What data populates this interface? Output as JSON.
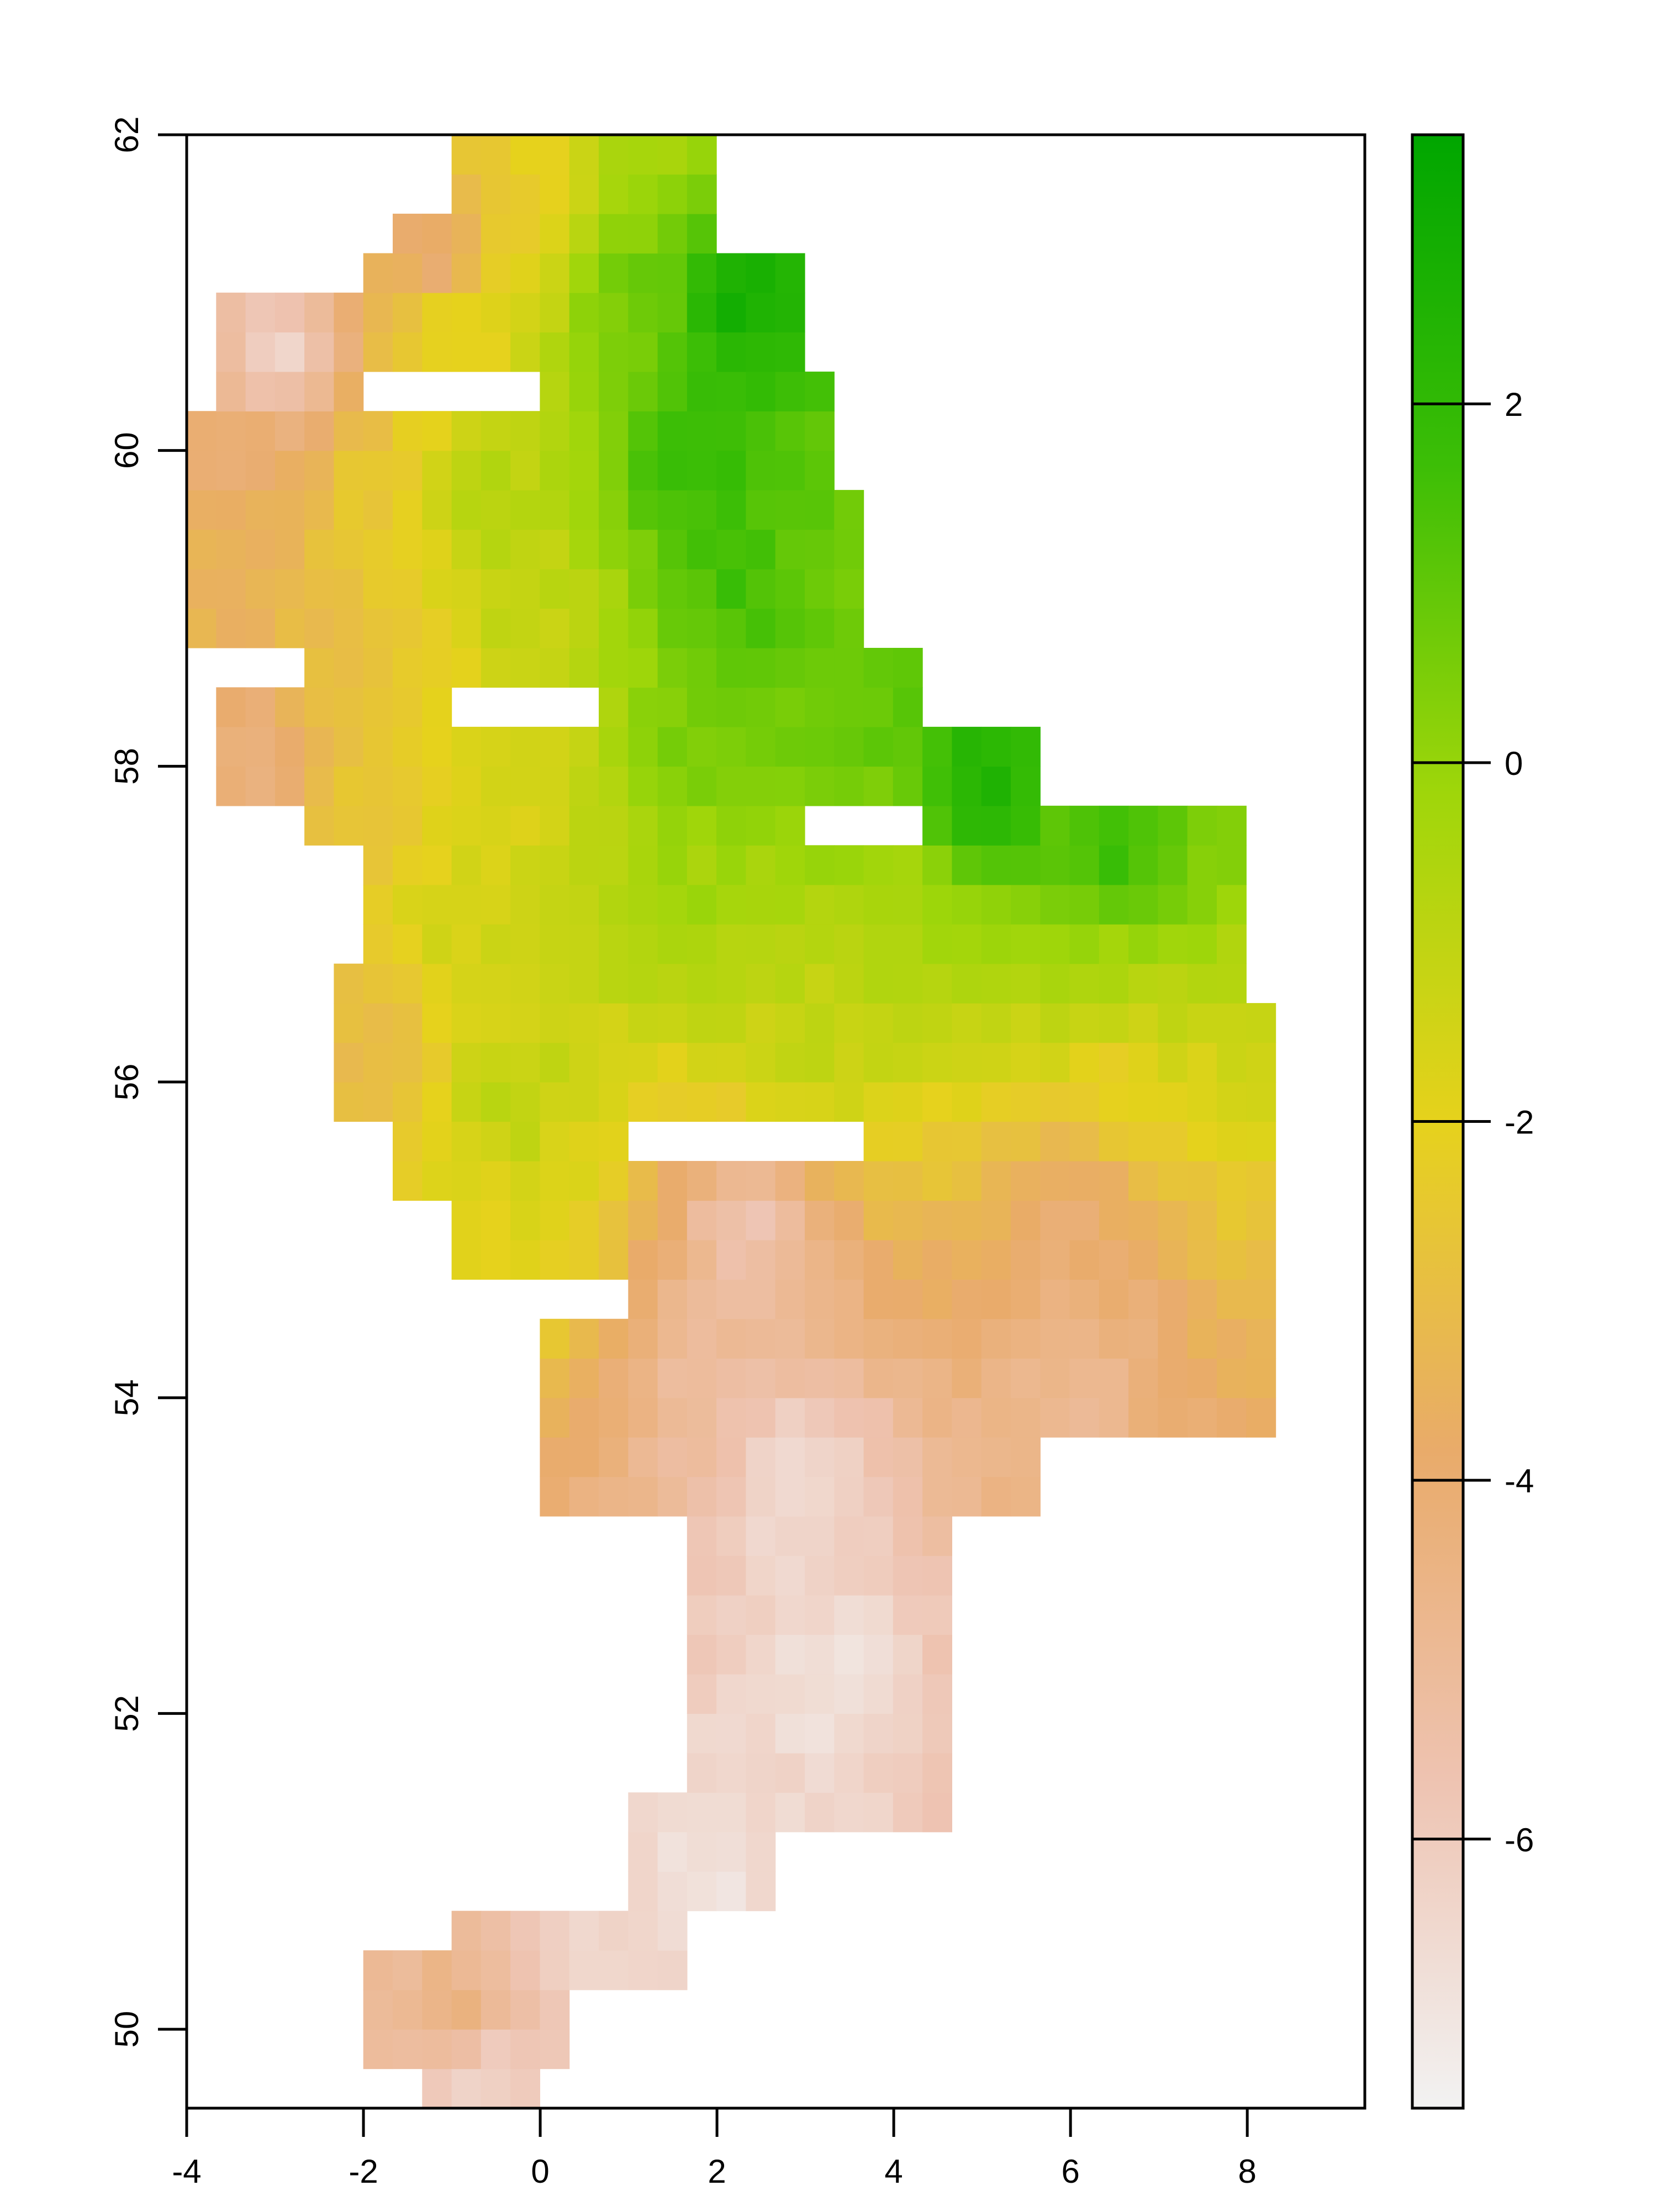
{
  "chart_data": {
    "type": "heatmap",
    "title": "",
    "xlabel": "",
    "ylabel": "",
    "xlim": [
      -4,
      9.33
    ],
    "ylim": [
      49.5,
      62
    ],
    "x_ticks": [
      -4,
      -2,
      0,
      2,
      4,
      6,
      8
    ],
    "y_ticks": [
      50,
      52,
      54,
      56,
      58,
      60,
      62
    ],
    "cell_size": {
      "x": 0.333,
      "y": 0.25
    },
    "grid": false,
    "legend": {
      "placement": "right",
      "range": [
        -7.5,
        3.5
      ],
      "ticks": [
        2,
        0,
        -2,
        -4,
        -6
      ]
    },
    "colors": {
      "ramp": [
        "#F2F2F2",
        "#EEC3B1",
        "#E9AB6A",
        "#E6D21C",
        "#9FD60A",
        "#3CBE06",
        "#00A600"
      ],
      "axis": "#000000",
      "background": "#FFFFFF"
    },
    "regions": [
      {
        "lon": [
          -1.0,
          1.0
        ],
        "lat": [
          61.3,
          62.0
        ],
        "value": -2.5
      },
      {
        "lon": [
          0.0,
          2.0
        ],
        "lat": [
          61.3,
          62.0
        ],
        "value": -0.3
      },
      {
        "lon": [
          -1.7,
          -0.7
        ],
        "lat": [
          60.8,
          61.6
        ],
        "value": -4.6
      },
      {
        "lon": [
          -3.8,
          -2.0
        ],
        "lat": [
          60.1,
          61.1
        ],
        "value": -6.5
      },
      {
        "lon": [
          -2.0,
          0.0
        ],
        "lat": [
          60.4,
          61.3
        ],
        "value": -1.5
      },
      {
        "lon": [
          0.0,
          2.0
        ],
        "lat": [
          60.5,
          61.6
        ],
        "value": 0.8
      },
      {
        "lon": [
          1.5,
          3.0
        ],
        "lat": [
          60.6,
          61.3
        ],
        "value": 3.0
      },
      {
        "lon": [
          -4.0,
          -2.7
        ],
        "lat": [
          59.5,
          60.3
        ],
        "value": -4.0
      },
      {
        "lon": [
          -2.7,
          -1.3
        ],
        "lat": [
          59.2,
          60.3
        ],
        "value": -2.6
      },
      {
        "lon": [
          -1.3,
          0.0
        ],
        "lat": [
          59.0,
          60.3
        ],
        "value": -0.6
      },
      {
        "lon": [
          0.0,
          3.3
        ],
        "lat": [
          59.2,
          60.6
        ],
        "value": 2.1
      },
      {
        "lon": [
          -4.0,
          -2.7
        ],
        "lat": [
          58.7,
          59.5
        ],
        "value": -3.4
      },
      {
        "lon": [
          -2.7,
          -1.0
        ],
        "lat": [
          58.3,
          59.2
        ],
        "value": -2.8
      },
      {
        "lon": [
          -1.0,
          0.7
        ],
        "lat": [
          58.5,
          59.5
        ],
        "value": -1.1
      },
      {
        "lon": [
          0.7,
          3.7
        ],
        "lat": [
          58.5,
          59.7
        ],
        "value": 1.6
      },
      {
        "lon": [
          -3.7,
          -2.7
        ],
        "lat": [
          57.7,
          58.4
        ],
        "value": -4.5
      },
      {
        "lon": [
          -2.7,
          -1.3
        ],
        "lat": [
          57.5,
          58.3
        ],
        "value": -2.7
      },
      {
        "lon": [
          -1.3,
          0.7
        ],
        "lat": [
          57.3,
          58.3
        ],
        "value": -1.6
      },
      {
        "lon": [
          0.7,
          2.7
        ],
        "lat": [
          57.5,
          58.7
        ],
        "value": 0.6
      },
      {
        "lon": [
          2.7,
          4.3
        ],
        "lat": [
          57.8,
          58.7
        ],
        "value": 0.9
      },
      {
        "lon": [
          4.3,
          5.7
        ],
        "lat": [
          57.5,
          58.3
        ],
        "value": 2.6
      },
      {
        "lon": [
          -2.0,
          0.0
        ],
        "lat": [
          56.3,
          57.5
        ],
        "value": -1.4
      },
      {
        "lon": [
          -2.3,
          -1.3
        ],
        "lat": [
          55.8,
          56.8
        ],
        "value": -3.2
      },
      {
        "lon": [
          0.0,
          3.0
        ],
        "lat": [
          56.5,
          57.7
        ],
        "value": -0.2
      },
      {
        "lon": [
          3.0,
          5.0
        ],
        "lat": [
          56.6,
          57.5
        ],
        "value": -0.6
      },
      {
        "lon": [
          5.0,
          8.0
        ],
        "lat": [
          57.0,
          57.7
        ],
        "value": 1.8
      },
      {
        "lon": [
          5.0,
          8.0
        ],
        "lat": [
          56.5,
          57.0
        ],
        "value": -0.5
      },
      {
        "lon": [
          -1.7,
          1.0
        ],
        "lat": [
          55.3,
          56.5
        ],
        "value": -0.8
      },
      {
        "lon": [
          1.0,
          4.7
        ],
        "lat": [
          55.7,
          56.6
        ],
        "value": -1.0
      },
      {
        "lon": [
          4.7,
          8.3
        ],
        "lat": [
          55.7,
          56.5
        ],
        "value": -2.0
      },
      {
        "lon": [
          -1.0,
          1.0
        ],
        "lat": [
          54.7,
          55.5
        ],
        "value": -1.8
      },
      {
        "lon": [
          1.0,
          3.7
        ],
        "lat": [
          54.6,
          55.6
        ],
        "value": -5.8
      },
      {
        "lon": [
          3.7,
          8.3
        ],
        "lat": [
          54.6,
          55.7
        ],
        "value": -4.2
      },
      {
        "lon": [
          0.0,
          3.7
        ],
        "lat": [
          53.8,
          54.6
        ],
        "value": -5.1
      },
      {
        "lon": [
          3.7,
          8.3
        ],
        "lat": [
          53.7,
          54.6
        ],
        "value": -4.9
      },
      {
        "lon": [
          0.0,
          5.7
        ],
        "lat": [
          53.2,
          53.8
        ],
        "value": -6.7
      },
      {
        "lon": [
          1.7,
          4.7
        ],
        "lat": [
          51.3,
          53.2
        ],
        "value": -6.8
      },
      {
        "lon": [
          1.0,
          2.7
        ],
        "lat": [
          50.7,
          51.5
        ],
        "value": -6.9
      },
      {
        "lon": [
          -1.0,
          1.7
        ],
        "lat": [
          50.2,
          50.8
        ],
        "value": -6.3
      },
      {
        "lon": [
          -2.0,
          0.3
        ],
        "lat": [
          49.7,
          50.5
        ],
        "value": -4.3
      },
      {
        "lon": [
          -1.3,
          0.0
        ],
        "lat": [
          49.5,
          49.8
        ],
        "value": -6.6
      }
    ]
  }
}
